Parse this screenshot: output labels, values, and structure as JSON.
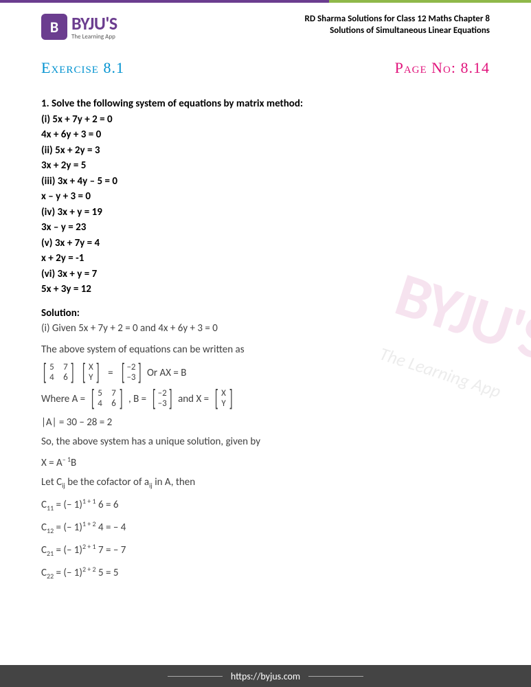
{
  "header": {
    "logo_main": "BYJU'S",
    "logo_sub": "The Learning App",
    "title_line1": "RD Sharma Solutions for Class 12 Maths Chapter 8",
    "title_line2": "Solutions of Simultaneous Linear Equations"
  },
  "exercise": {
    "label": "Exercise 8.1",
    "page_label": "Page No: 8.14"
  },
  "question": {
    "prompt": "1. Solve the following system of equations by matrix method:",
    "parts": [
      "(i) 5x + 7y + 2 = 0",
      "4x + 6y + 3 = 0",
      "(ii) 5x + 2y = 3",
      "3x + 2y = 5",
      "(iii) 3x + 4y – 5 = 0",
      "x – y + 3 = 0",
      "(iv) 3x + y = 19",
      "3x – y = 23",
      "(v) 3x + 7y = 4",
      "x + 2y = -1",
      "(vi) 3x + y = 7",
      "5x + 3y = 12"
    ]
  },
  "solution": {
    "label": "Solution:",
    "line1": "(i) Given 5x + 7y + 2 = 0 and 4x + 6y + 3 = 0",
    "line2": "The above system of equations can be written as",
    "or_ax_b": " Or AX = B",
    "where_label": "Where A = ",
    "b_label": ", B = ",
    "x_label": " and X = ",
    "det_line": "|A| = 30 – 28 = 2",
    "unique_line": "So, the above system has a unique solution, given by",
    "x_ab": "X = A",
    "x_ab_sup": "– 1",
    "x_ab_end": "B",
    "cofactor_intro_1": "Let C",
    "cofactor_intro_sub": "ij",
    "cofactor_intro_2": " be the cofactor of a",
    "cofactor_intro_3": " in A, then",
    "c11": {
      "label": "C",
      "sub": "11",
      "eq": " = (– 1)",
      "sup": "1 + 1",
      "rest": " 6 = 6"
    },
    "c12": {
      "label": "C",
      "sub": "12",
      "eq": " = (– 1)",
      "sup": "1 + 2",
      "rest": " 4 = – 4"
    },
    "c21": {
      "label": "C",
      "sub": "21",
      "eq": " = (– 1)",
      "sup": "2 + 1",
      "rest": " 7 = – 7"
    },
    "c22": {
      "label": "C",
      "sub": "22",
      "eq": " = (– 1)",
      "sup": "2 + 2",
      "rest": " 5 = 5"
    }
  },
  "matrices": {
    "A": [
      [
        "5",
        "7"
      ],
      [
        "4",
        "6"
      ]
    ],
    "X": [
      [
        "X"
      ],
      [
        "Y"
      ]
    ],
    "B": [
      [
        "–2"
      ],
      [
        "–3"
      ]
    ]
  },
  "footer": {
    "url": "https://byjus.com"
  },
  "colors": {
    "purple": "#6b3d8f",
    "green": "#8fb84a",
    "blue": "#0092d0",
    "pink": "#e1147c",
    "gray_text": "#404040"
  }
}
